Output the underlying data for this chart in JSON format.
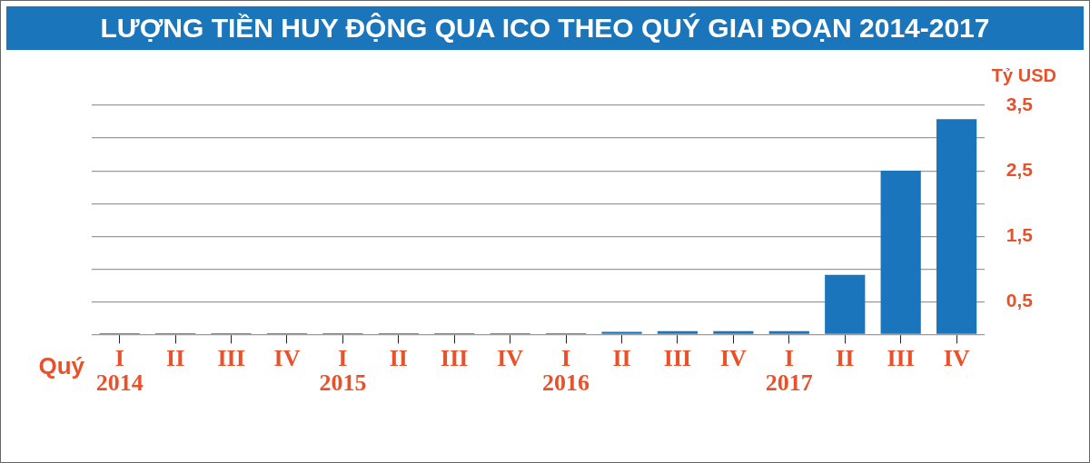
{
  "chart_data": {
    "type": "bar",
    "title": "LƯỢNG TIỀN HUY ĐỘNG QUA ICO THEO QUÝ GIAI ĐOẠN 2014-2017",
    "xlabel": "Quý",
    "ylabel": "Tỷ USD",
    "categories": [
      "I\n2014",
      "II",
      "III",
      "IV",
      "I\n2015",
      "II",
      "III",
      "IV",
      "I\n2016",
      "II",
      "III",
      "IV",
      "I\n2017",
      "II",
      "III",
      "IV"
    ],
    "values": [
      0.02,
      0.02,
      0.02,
      0.02,
      0.02,
      0.02,
      0.02,
      0.02,
      0.02,
      0.04,
      0.05,
      0.05,
      0.05,
      0.91,
      2.5,
      3.29
    ],
    "color": "#1a75bc",
    "ylim": [
      0,
      3.5
    ],
    "yticks": [
      {
        "value": 0,
        "label": null
      },
      {
        "value": 0.5,
        "label": "0,5"
      },
      {
        "value": 1,
        "label": null
      },
      {
        "value": 1.5,
        "label": "1,5"
      },
      {
        "value": 2,
        "label": null
      },
      {
        "value": 2.5,
        "label": "2,5"
      },
      {
        "value": 3,
        "label": null
      },
      {
        "value": 3.5,
        "label": "3,5"
      }
    ],
    "grid": "y",
    "legend": false
  }
}
